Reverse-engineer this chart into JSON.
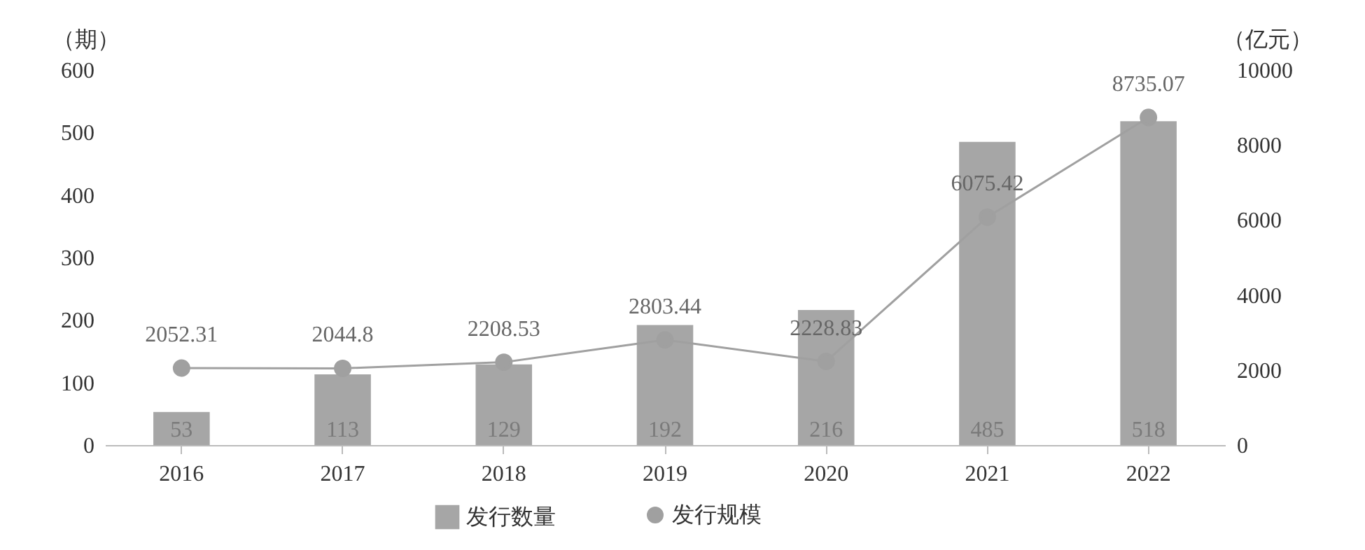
{
  "chart_data": {
    "type": "bar",
    "ylabel": "（期）",
    "y2label": "（亿元）",
    "categories": [
      "2016",
      "2017",
      "2018",
      "2019",
      "2020",
      "2021",
      "2022"
    ],
    "series": [
      {
        "name": "发行数量",
        "type": "bar",
        "color": "#a6a6a6",
        "values": [
          53,
          113,
          129,
          192,
          216,
          485,
          518
        ]
      },
      {
        "name": "发行规模",
        "type": "line",
        "axis": "y2",
        "color": "#a0a0a0",
        "values": [
          2052.31,
          2044.8,
          2208.53,
          2803.44,
          2228.83,
          6075.42,
          8735.07
        ]
      }
    ],
    "ylim": [
      0,
      600
    ],
    "yticks": [
      0,
      100,
      200,
      300,
      400,
      500,
      600
    ],
    "y2lim": [
      0,
      10000
    ],
    "y2ticks": [
      0,
      2000,
      4000,
      6000,
      8000,
      10000
    ],
    "data_labels": true,
    "marker": "circle",
    "legend": "bottom",
    "grid": false
  }
}
